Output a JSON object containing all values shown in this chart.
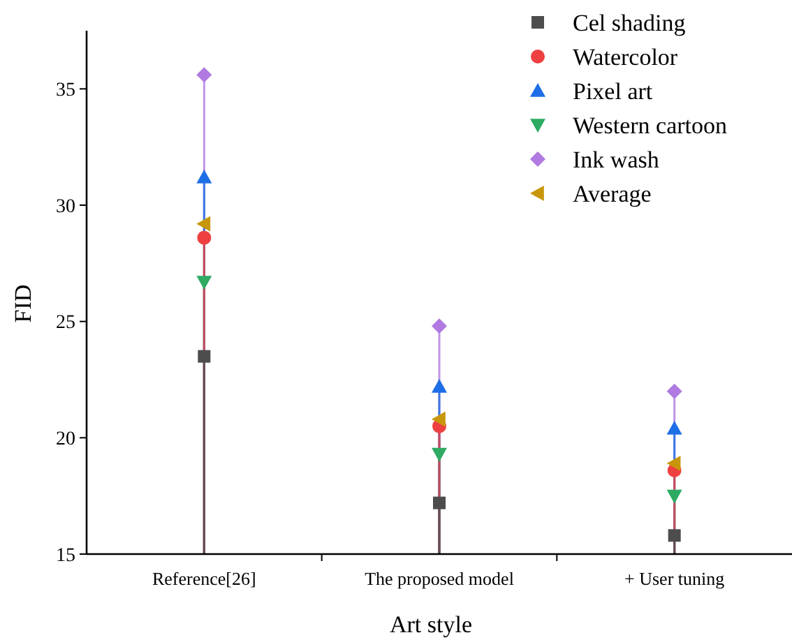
{
  "chart_data": {
    "type": "lollipop",
    "xlabel": "Art style",
    "ylabel": "FID",
    "categories": [
      "Reference[26]",
      "The proposed model",
      "+ User tuning"
    ],
    "ylim": [
      15,
      37.5
    ],
    "yticks": [
      15,
      20,
      25,
      30,
      35
    ],
    "legend": "top right",
    "grid": false,
    "series": [
      {
        "name": "Cel shading",
        "color": "#4d4d4d",
        "marker": "square",
        "values": [
          23.5,
          17.2,
          15.8
        ]
      },
      {
        "name": "Watercolor",
        "color": "#ee4040",
        "marker": "circle",
        "values": [
          28.6,
          20.5,
          18.6
        ]
      },
      {
        "name": "Pixel art",
        "color": "#1e6ee6",
        "marker": "triangle",
        "values": [
          31.2,
          22.2,
          20.4
        ]
      },
      {
        "name": "Western cartoon",
        "color": "#2eaa62",
        "marker": "triangle-down",
        "values": [
          26.7,
          19.3,
          17.5
        ]
      },
      {
        "name": "Ink wash",
        "color": "#b07ae0",
        "marker": "diamond",
        "values": [
          35.6,
          24.8,
          22.0
        ]
      },
      {
        "name": "Average",
        "color": "#c8960a",
        "marker": "triangle-left",
        "values": [
          29.2,
          20.8,
          18.9
        ]
      }
    ]
  }
}
